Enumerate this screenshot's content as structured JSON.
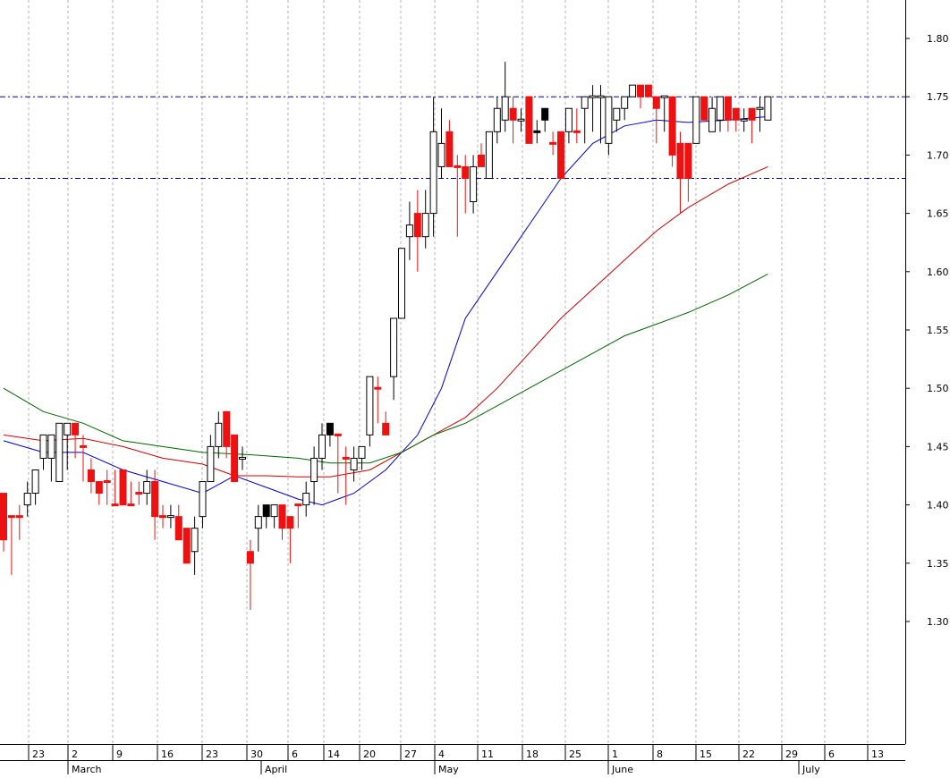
{
  "chart_data": {
    "type": "candlestick",
    "y_axis": {
      "ticks": [
        "1.80",
        "1.75",
        "1.70",
        "1.65",
        "1.60",
        "1.55",
        "1.50",
        "1.45",
        "1.40",
        "1.35",
        "1.30"
      ],
      "range": [
        1.265,
        1.825
      ],
      "position": "right"
    },
    "x_axis": {
      "day_ticks": [
        "23",
        "2",
        "9",
        "16",
        "23",
        "30",
        "6",
        "14",
        "20",
        "27",
        "4",
        "11",
        "18",
        "25",
        "1",
        "8",
        "15",
        "22",
        "29",
        "6",
        "13"
      ],
      "month_labels": [
        "March",
        "April",
        "May",
        "June",
        "July"
      ],
      "grid": "vertical dashed at each day tick"
    },
    "horizontal_reference_lines": [
      {
        "value": 1.75,
        "color": "#0000aa",
        "style": "dash-dot"
      },
      {
        "value": 1.68,
        "color": "#0000aa",
        "style": "dash-dot"
      }
    ],
    "candles": [
      {
        "o": 1.41,
        "h": 1.41,
        "l": 1.36,
        "c": 1.37,
        "color": "red"
      },
      {
        "o": 1.39,
        "h": 1.39,
        "l": 1.34,
        "c": 1.39,
        "color": "red"
      },
      {
        "o": 1.39,
        "h": 1.4,
        "l": 1.37,
        "c": 1.39,
        "color": "red"
      },
      {
        "o": 1.4,
        "h": 1.42,
        "l": 1.39,
        "c": 1.41,
        "color": "white"
      },
      {
        "o": 1.41,
        "h": 1.43,
        "l": 1.4,
        "c": 1.43,
        "color": "white"
      },
      {
        "o": 1.44,
        "h": 1.46,
        "l": 1.43,
        "c": 1.46,
        "color": "white"
      },
      {
        "o": 1.44,
        "h": 1.46,
        "l": 1.42,
        "c": 1.46,
        "color": "white"
      },
      {
        "o": 1.42,
        "h": 1.47,
        "l": 1.42,
        "c": 1.47,
        "color": "white"
      },
      {
        "o": 1.46,
        "h": 1.47,
        "l": 1.43,
        "c": 1.47,
        "color": "white"
      },
      {
        "o": 1.47,
        "h": 1.47,
        "l": 1.44,
        "c": 1.46,
        "color": "red"
      },
      {
        "o": 1.45,
        "h": 1.46,
        "l": 1.42,
        "c": 1.45,
        "color": "red"
      },
      {
        "o": 1.43,
        "h": 1.44,
        "l": 1.41,
        "c": 1.42,
        "color": "red"
      },
      {
        "o": 1.42,
        "h": 1.42,
        "l": 1.4,
        "c": 1.41,
        "color": "red"
      },
      {
        "o": 1.42,
        "h": 1.43,
        "l": 1.4,
        "c": 1.42,
        "color": "red"
      },
      {
        "o": 1.4,
        "h": 1.43,
        "l": 1.4,
        "c": 1.4,
        "color": "red"
      },
      {
        "o": 1.43,
        "h": 1.43,
        "l": 1.4,
        "c": 1.4,
        "color": "red"
      },
      {
        "o": 1.4,
        "h": 1.42,
        "l": 1.4,
        "c": 1.4,
        "color": "red"
      },
      {
        "o": 1.41,
        "h": 1.42,
        "l": 1.4,
        "c": 1.41,
        "color": "red"
      },
      {
        "o": 1.41,
        "h": 1.43,
        "l": 1.4,
        "c": 1.42,
        "color": "white"
      },
      {
        "o": 1.42,
        "h": 1.43,
        "l": 1.37,
        "c": 1.39,
        "color": "red"
      },
      {
        "o": 1.39,
        "h": 1.4,
        "l": 1.38,
        "c": 1.39,
        "color": "red"
      },
      {
        "o": 1.39,
        "h": 1.4,
        "l": 1.38,
        "c": 1.39,
        "color": "white"
      },
      {
        "o": 1.39,
        "h": 1.4,
        "l": 1.37,
        "c": 1.37,
        "color": "red"
      },
      {
        "o": 1.38,
        "h": 1.38,
        "l": 1.35,
        "c": 1.35,
        "color": "red"
      },
      {
        "o": 1.36,
        "h": 1.39,
        "l": 1.34,
        "c": 1.38,
        "color": "white"
      },
      {
        "o": 1.39,
        "h": 1.42,
        "l": 1.38,
        "c": 1.42,
        "color": "white"
      },
      {
        "o": 1.42,
        "h": 1.46,
        "l": 1.42,
        "c": 1.45,
        "color": "white"
      },
      {
        "o": 1.45,
        "h": 1.48,
        "l": 1.44,
        "c": 1.47,
        "color": "white"
      },
      {
        "o": 1.48,
        "h": 1.48,
        "l": 1.44,
        "c": 1.45,
        "color": "red"
      },
      {
        "o": 1.46,
        "h": 1.46,
        "l": 1.42,
        "c": 1.42,
        "color": "red"
      },
      {
        "o": 1.44,
        "h": 1.45,
        "l": 1.43,
        "c": 1.44,
        "color": "white"
      },
      {
        "o": 1.36,
        "h": 1.37,
        "l": 1.31,
        "c": 1.35,
        "color": "red"
      },
      {
        "o": 1.38,
        "h": 1.4,
        "l": 1.36,
        "c": 1.39,
        "color": "white"
      },
      {
        "o": 1.39,
        "h": 1.4,
        "l": 1.38,
        "c": 1.4,
        "color": "black"
      },
      {
        "o": 1.39,
        "h": 1.4,
        "l": 1.38,
        "c": 1.4,
        "color": "white"
      },
      {
        "o": 1.4,
        "h": 1.4,
        "l": 1.37,
        "c": 1.38,
        "color": "red"
      },
      {
        "o": 1.39,
        "h": 1.39,
        "l": 1.35,
        "c": 1.38,
        "color": "red"
      },
      {
        "o": 1.4,
        "h": 1.4,
        "l": 1.38,
        "c": 1.4,
        "color": "red"
      },
      {
        "o": 1.4,
        "h": 1.42,
        "l": 1.39,
        "c": 1.41,
        "color": "white"
      },
      {
        "o": 1.42,
        "h": 1.45,
        "l": 1.4,
        "c": 1.44,
        "color": "white"
      },
      {
        "o": 1.44,
        "h": 1.47,
        "l": 1.43,
        "c": 1.46,
        "color": "white"
      },
      {
        "o": 1.47,
        "h": 1.47,
        "l": 1.45,
        "c": 1.46,
        "color": "black"
      },
      {
        "o": 1.46,
        "h": 1.46,
        "l": 1.41,
        "c": 1.46,
        "color": "red"
      },
      {
        "o": 1.44,
        "h": 1.45,
        "l": 1.4,
        "c": 1.44,
        "color": "red"
      },
      {
        "o": 1.43,
        "h": 1.45,
        "l": 1.42,
        "c": 1.44,
        "color": "white"
      },
      {
        "o": 1.44,
        "h": 1.45,
        "l": 1.43,
        "c": 1.45,
        "color": "white"
      },
      {
        "o": 1.46,
        "h": 1.51,
        "l": 1.45,
        "c": 1.51,
        "color": "white"
      },
      {
        "o": 1.5,
        "h": 1.51,
        "l": 1.47,
        "c": 1.5,
        "color": "red"
      },
      {
        "o": 1.47,
        "h": 1.48,
        "l": 1.46,
        "c": 1.46,
        "color": "red"
      },
      {
        "o": 1.51,
        "h": 1.56,
        "l": 1.49,
        "c": 1.56,
        "color": "white"
      },
      {
        "o": 1.56,
        "h": 1.62,
        "l": 1.56,
        "c": 1.62,
        "color": "white"
      },
      {
        "o": 1.63,
        "h": 1.66,
        "l": 1.61,
        "c": 1.64,
        "color": "white"
      },
      {
        "o": 1.65,
        "h": 1.67,
        "l": 1.6,
        "c": 1.63,
        "color": "red"
      },
      {
        "o": 1.63,
        "h": 1.67,
        "l": 1.62,
        "c": 1.65,
        "color": "white"
      },
      {
        "o": 1.65,
        "h": 1.75,
        "l": 1.63,
        "c": 1.72,
        "color": "white"
      },
      {
        "o": 1.69,
        "h": 1.74,
        "l": 1.68,
        "c": 1.71,
        "color": "white"
      },
      {
        "o": 1.72,
        "h": 1.73,
        "l": 1.69,
        "c": 1.69,
        "color": "red"
      },
      {
        "o": 1.69,
        "h": 1.7,
        "l": 1.63,
        "c": 1.69,
        "color": "red"
      },
      {
        "o": 1.69,
        "h": 1.7,
        "l": 1.65,
        "c": 1.68,
        "color": "red"
      },
      {
        "o": 1.66,
        "h": 1.7,
        "l": 1.65,
        "c": 1.69,
        "color": "white"
      },
      {
        "o": 1.7,
        "h": 1.71,
        "l": 1.69,
        "c": 1.69,
        "color": "red"
      },
      {
        "o": 1.68,
        "h": 1.72,
        "l": 1.68,
        "c": 1.72,
        "color": "white"
      },
      {
        "o": 1.72,
        "h": 1.75,
        "l": 1.71,
        "c": 1.74,
        "color": "white"
      },
      {
        "o": 1.73,
        "h": 1.78,
        "l": 1.72,
        "c": 1.75,
        "color": "white"
      },
      {
        "o": 1.74,
        "h": 1.75,
        "l": 1.71,
        "c": 1.73,
        "color": "red"
      },
      {
        "o": 1.73,
        "h": 1.74,
        "l": 1.72,
        "c": 1.73,
        "color": "white"
      },
      {
        "o": 1.75,
        "h": 1.75,
        "l": 1.71,
        "c": 1.71,
        "color": "red"
      },
      {
        "o": 1.72,
        "h": 1.73,
        "l": 1.71,
        "c": 1.72,
        "color": "black"
      },
      {
        "o": 1.74,
        "h": 1.74,
        "l": 1.72,
        "c": 1.73,
        "color": "black"
      },
      {
        "o": 1.71,
        "h": 1.72,
        "l": 1.7,
        "c": 1.71,
        "color": "red"
      },
      {
        "o": 1.72,
        "h": 1.72,
        "l": 1.68,
        "c": 1.68,
        "color": "red"
      },
      {
        "o": 1.72,
        "h": 1.74,
        "l": 1.71,
        "c": 1.74,
        "color": "white"
      },
      {
        "o": 1.72,
        "h": 1.74,
        "l": 1.71,
        "c": 1.72,
        "color": "red"
      },
      {
        "o": 1.74,
        "h": 1.75,
        "l": 1.71,
        "c": 1.75,
        "color": "white"
      },
      {
        "o": 1.75,
        "h": 1.76,
        "l": 1.72,
        "c": 1.75,
        "color": "white"
      },
      {
        "o": 1.75,
        "h": 1.76,
        "l": 1.71,
        "c": 1.75,
        "color": "white"
      },
      {
        "o": 1.71,
        "h": 1.75,
        "l": 1.7,
        "c": 1.75,
        "color": "white"
      },
      {
        "o": 1.73,
        "h": 1.74,
        "l": 1.72,
        "c": 1.74,
        "color": "white"
      },
      {
        "o": 1.74,
        "h": 1.75,
        "l": 1.73,
        "c": 1.75,
        "color": "white"
      },
      {
        "o": 1.75,
        "h": 1.76,
        "l": 1.75,
        "c": 1.76,
        "color": "white"
      },
      {
        "o": 1.76,
        "h": 1.76,
        "l": 1.74,
        "c": 1.75,
        "color": "red"
      },
      {
        "o": 1.76,
        "h": 1.76,
        "l": 1.75,
        "c": 1.75,
        "color": "red"
      },
      {
        "o": 1.75,
        "h": 1.75,
        "l": 1.71,
        "c": 1.74,
        "color": "red"
      },
      {
        "o": 1.75,
        "h": 1.75,
        "l": 1.72,
        "c": 1.75,
        "color": "white"
      },
      {
        "o": 1.75,
        "h": 1.75,
        "l": 1.69,
        "c": 1.7,
        "color": "red"
      },
      {
        "o": 1.71,
        "h": 1.72,
        "l": 1.65,
        "c": 1.68,
        "color": "red"
      },
      {
        "o": 1.71,
        "h": 1.71,
        "l": 1.66,
        "c": 1.68,
        "color": "red"
      },
      {
        "o": 1.71,
        "h": 1.75,
        "l": 1.71,
        "c": 1.75,
        "color": "white"
      },
      {
        "o": 1.75,
        "h": 1.75,
        "l": 1.73,
        "c": 1.73,
        "color": "red"
      },
      {
        "o": 1.74,
        "h": 1.75,
        "l": 1.72,
        "c": 1.72,
        "color": "white"
      },
      {
        "o": 1.73,
        "h": 1.75,
        "l": 1.72,
        "c": 1.75,
        "color": "white"
      },
      {
        "o": 1.75,
        "h": 1.75,
        "l": 1.72,
        "c": 1.73,
        "color": "red"
      },
      {
        "o": 1.74,
        "h": 1.74,
        "l": 1.72,
        "c": 1.73,
        "color": "red"
      },
      {
        "o": 1.73,
        "h": 1.74,
        "l": 1.72,
        "c": 1.73,
        "color": "white"
      },
      {
        "o": 1.73,
        "h": 1.74,
        "l": 1.71,
        "c": 1.74,
        "color": "red"
      },
      {
        "o": 1.74,
        "h": 1.75,
        "l": 1.72,
        "c": 1.74,
        "color": "white"
      },
      {
        "o": 1.73,
        "h": 1.75,
        "l": 1.73,
        "c": 1.75,
        "color": "white"
      }
    ],
    "moving_averages": [
      {
        "color": "#0000cc",
        "values": [
          [
            0,
            1.455
          ],
          [
            5,
            1.445
          ],
          [
            10,
            1.445
          ],
          [
            15,
            1.43
          ],
          [
            20,
            1.42
          ],
          [
            25,
            1.41
          ],
          [
            29,
            1.425
          ],
          [
            33,
            1.415
          ],
          [
            37,
            1.405
          ],
          [
            40,
            1.4
          ],
          [
            44,
            1.41
          ],
          [
            48,
            1.43
          ],
          [
            52,
            1.46
          ],
          [
            55,
            1.5
          ],
          [
            58,
            1.56
          ],
          [
            62,
            1.6
          ],
          [
            66,
            1.64
          ],
          [
            70,
            1.68
          ],
          [
            74,
            1.71
          ],
          [
            78,
            1.725
          ],
          [
            82,
            1.73
          ],
          [
            86,
            1.728
          ],
          [
            91,
            1.73
          ],
          [
            96,
            1.733
          ]
        ]
      },
      {
        "color": "#cc0000",
        "values": [
          [
            0,
            1.46
          ],
          [
            5,
            1.455
          ],
          [
            10,
            1.457
          ],
          [
            15,
            1.45
          ],
          [
            20,
            1.44
          ],
          [
            25,
            1.435
          ],
          [
            29,
            1.425
          ],
          [
            33,
            1.425
          ],
          [
            37,
            1.424
          ],
          [
            41,
            1.424
          ],
          [
            46,
            1.43
          ],
          [
            50,
            1.445
          ],
          [
            54,
            1.46
          ],
          [
            58,
            1.475
          ],
          [
            62,
            1.5
          ],
          [
            66,
            1.53
          ],
          [
            70,
            1.56
          ],
          [
            74,
            1.585
          ],
          [
            78,
            1.61
          ],
          [
            82,
            1.635
          ],
          [
            86,
            1.655
          ],
          [
            91,
            1.675
          ],
          [
            96,
            1.69
          ]
        ]
      },
      {
        "color": "#006600",
        "values": [
          [
            0,
            1.5
          ],
          [
            5,
            1.48
          ],
          [
            10,
            1.47
          ],
          [
            15,
            1.455
          ],
          [
            20,
            1.45
          ],
          [
            25,
            1.445
          ],
          [
            31,
            1.443
          ],
          [
            37,
            1.44
          ],
          [
            41,
            1.436
          ],
          [
            46,
            1.436
          ],
          [
            50,
            1.445
          ],
          [
            54,
            1.46
          ],
          [
            58,
            1.47
          ],
          [
            62,
            1.485
          ],
          [
            66,
            1.5
          ],
          [
            70,
            1.515
          ],
          [
            74,
            1.53
          ],
          [
            78,
            1.545
          ],
          [
            82,
            1.555
          ],
          [
            86,
            1.565
          ],
          [
            91,
            1.58
          ],
          [
            96,
            1.598
          ]
        ]
      }
    ]
  }
}
